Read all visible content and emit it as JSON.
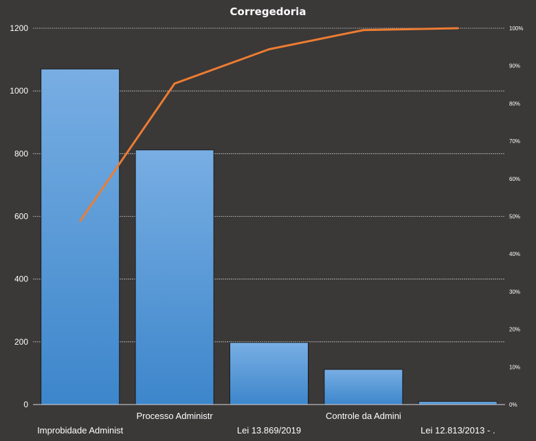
{
  "chart_data": {
    "type": "bar",
    "title": "Corregedoria",
    "categories": [
      "Improbidade  Administ",
      "Processo Administr",
      "Lei 13.869/2019",
      "Controle da Admini",
      "Lei 12.813/2013 - ."
    ],
    "series": [
      {
        "type": "bar",
        "values": [
          1070,
          812,
          198,
          112,
          10
        ]
      },
      {
        "type": "line",
        "axis": "right",
        "values": [
          48.8,
          85.3,
          94.4,
          99.5,
          100
        ]
      }
    ],
    "ylim": [
      0,
      1200
    ],
    "y_ticks": [
      0,
      200,
      400,
      600,
      800,
      1000,
      1200
    ],
    "y2lim": [
      0,
      100
    ],
    "y2_ticks": [
      "0%",
      "10%",
      "20%",
      "30%",
      "40%",
      "50%",
      "60%",
      "70%",
      "80%",
      "90%",
      "100%"
    ],
    "grid": true,
    "legend": "none",
    "colors": {
      "bar_top": "#78aee3",
      "bar_bottom": "#3d86cb",
      "line": "#ed7d31",
      "grid": "#bfbfbf",
      "background": "#3b3838"
    }
  }
}
